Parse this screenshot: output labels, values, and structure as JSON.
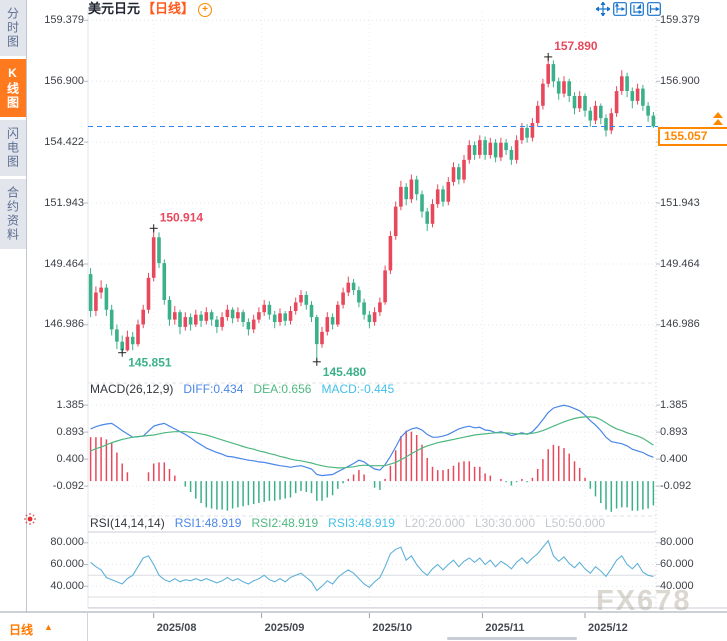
{
  "sidebar": {
    "items": [
      {
        "label": "分时图",
        "selected": false
      },
      {
        "label": "K线图",
        "selected": true
      },
      {
        "label": "闪电图",
        "selected": false
      },
      {
        "label": "合约资料",
        "selected": false
      }
    ]
  },
  "header": {
    "symbol": "美元日元",
    "period": "【日线】"
  },
  "toolbar": {
    "icons": [
      "move",
      "fit-left-axis",
      "fit-right-axis",
      "pan-right"
    ]
  },
  "price_badge": {
    "label": "155.057"
  },
  "bottom_axis": {
    "tab_label": "日线",
    "tab_arrow": "▲",
    "months": [
      {
        "label": "2025/08",
        "index": 12
      },
      {
        "label": "2025/09",
        "index": 32.5
      },
      {
        "label": "2025/10",
        "index": 53
      },
      {
        "label": "2025/11",
        "index": 74.5
      },
      {
        "label": "2025/12",
        "index": 94
      }
    ]
  },
  "watermark": "FX678",
  "colors": {
    "up": "#e8485c",
    "down": "#3bb18a",
    "diff_line": "#4a86e8",
    "dea_line": "#4db87e",
    "rsi_line": "#5fb1d8",
    "price_line": "#2e86ee",
    "accent": "#ff8800",
    "grid": "#e4e7ec"
  },
  "chart_data": [
    {
      "type": "candlestick",
      "title": "美元日元【日线】",
      "ylim": [
        144.7,
        159.8
      ],
      "yticks": [
        {
          "label": "159.379",
          "value": 159.379
        },
        {
          "label": "156.900",
          "value": 156.9
        },
        {
          "label": "154.422",
          "value": 154.422
        },
        {
          "label": "151.943",
          "value": 151.943
        },
        {
          "label": "149.464",
          "value": 149.464
        },
        {
          "label": "146.986",
          "value": 146.986
        }
      ],
      "current_price": {
        "value": 155.057,
        "label": "155.057"
      },
      "annotations": [
        {
          "label": "150.914",
          "value": 150.914,
          "index": 12,
          "color": "#e8485c",
          "placement": "above"
        },
        {
          "label": "145.851",
          "value": 145.851,
          "index": 6,
          "color": "#3bb18a",
          "placement": "below"
        },
        {
          "label": "145.480",
          "value": 145.48,
          "index": 43,
          "color": "#3bb18a",
          "placement": "below"
        },
        {
          "label": "157.890",
          "value": 157.89,
          "index": 87,
          "color": "#e8485c",
          "placement": "above"
        }
      ],
      "candles": [
        [
          149.05,
          149.3,
          147.3,
          147.55
        ],
        [
          147.55,
          148.55,
          147.35,
          148.3
        ],
        [
          148.3,
          148.8,
          148.05,
          148.5
        ],
        [
          148.5,
          148.65,
          147.35,
          147.6
        ],
        [
          147.6,
          147.8,
          146.55,
          146.8
        ],
        [
          146.8,
          147.0,
          146.0,
          146.3
        ],
        [
          146.3,
          146.55,
          145.851,
          145.95
        ],
        [
          145.95,
          146.75,
          145.9,
          146.5
        ],
        [
          146.5,
          146.7,
          145.95,
          146.2
        ],
        [
          146.2,
          147.2,
          146.1,
          147.0
        ],
        [
          147.0,
          147.8,
          146.85,
          147.6
        ],
        [
          147.6,
          149.1,
          147.45,
          148.9
        ],
        [
          148.9,
          150.914,
          148.75,
          150.55
        ],
        [
          150.55,
          150.75,
          149.3,
          149.5
        ],
        [
          149.5,
          149.65,
          147.8,
          148.0
        ],
        [
          148.0,
          148.15,
          146.95,
          147.2
        ],
        [
          147.2,
          147.75,
          147.0,
          147.5
        ],
        [
          147.5,
          147.6,
          146.6,
          146.9
        ],
        [
          146.9,
          147.5,
          146.75,
          147.3
        ],
        [
          147.3,
          147.45,
          146.75,
          147.0
        ],
        [
          147.0,
          147.6,
          146.9,
          147.4
        ],
        [
          147.4,
          147.55,
          146.9,
          147.15
        ],
        [
          147.15,
          147.7,
          147.0,
          147.5
        ],
        [
          147.5,
          147.6,
          146.95,
          147.2
        ],
        [
          147.2,
          147.35,
          146.65,
          146.9
        ],
        [
          146.9,
          147.5,
          146.75,
          147.3
        ],
        [
          147.3,
          147.8,
          147.15,
          147.6
        ],
        [
          147.6,
          147.7,
          147.05,
          147.25
        ],
        [
          147.25,
          147.7,
          147.1,
          147.5
        ],
        [
          147.5,
          147.6,
          146.9,
          147.1
        ],
        [
          147.1,
          147.25,
          146.55,
          146.8
        ],
        [
          146.8,
          147.4,
          146.65,
          147.2
        ],
        [
          147.2,
          147.7,
          147.05,
          147.5
        ],
        [
          147.5,
          148.0,
          147.35,
          147.8
        ],
        [
          147.8,
          147.95,
          147.2,
          147.4
        ],
        [
          147.4,
          147.55,
          146.85,
          147.1
        ],
        [
          147.1,
          147.65,
          146.95,
          147.45
        ],
        [
          147.45,
          147.55,
          146.95,
          147.15
        ],
        [
          147.15,
          147.75,
          147.0,
          147.55
        ],
        [
          147.55,
          148.1,
          147.4,
          147.9
        ],
        [
          147.9,
          148.4,
          147.75,
          148.2
        ],
        [
          148.2,
          148.35,
          147.6,
          147.8
        ],
        [
          147.8,
          147.95,
          147.1,
          147.3
        ],
        [
          147.3,
          147.4,
          145.48,
          146.2
        ],
        [
          146.2,
          146.9,
          146.05,
          146.7
        ],
        [
          146.7,
          147.5,
          146.55,
          147.3
        ],
        [
          147.3,
          147.45,
          146.8,
          147.0
        ],
        [
          147.0,
          147.95,
          146.9,
          147.8
        ],
        [
          147.8,
          148.5,
          147.65,
          148.3
        ],
        [
          148.3,
          148.95,
          148.15,
          148.7
        ],
        [
          148.7,
          148.85,
          148.2,
          148.4
        ],
        [
          148.4,
          148.55,
          147.7,
          147.9
        ],
        [
          147.9,
          148.05,
          147.2,
          147.4
        ],
        [
          147.4,
          147.55,
          146.85,
          147.1
        ],
        [
          147.1,
          147.7,
          146.95,
          147.5
        ],
        [
          147.5,
          148.1,
          147.35,
          147.9
        ],
        [
          147.9,
          149.4,
          147.8,
          149.2
        ],
        [
          149.2,
          150.8,
          149.05,
          150.6
        ],
        [
          150.6,
          152.0,
          150.45,
          151.8
        ],
        [
          151.8,
          152.85,
          151.65,
          152.6
        ],
        [
          152.6,
          152.75,
          151.85,
          152.1
        ],
        [
          152.1,
          153.1,
          151.95,
          152.9
        ],
        [
          152.9,
          153.05,
          152.05,
          152.3
        ],
        [
          152.3,
          152.45,
          151.35,
          151.6
        ],
        [
          151.6,
          151.75,
          150.8,
          151.1
        ],
        [
          151.1,
          152.1,
          150.95,
          151.9
        ],
        [
          151.9,
          152.7,
          151.75,
          152.5
        ],
        [
          152.5,
          152.65,
          151.8,
          152.0
        ],
        [
          152.0,
          153.0,
          151.85,
          152.8
        ],
        [
          152.8,
          153.6,
          152.65,
          153.4
        ],
        [
          153.4,
          153.55,
          152.7,
          152.9
        ],
        [
          152.9,
          153.9,
          152.75,
          153.7
        ],
        [
          153.7,
          154.5,
          153.55,
          154.3
        ],
        [
          154.3,
          154.45,
          153.7,
          153.9
        ],
        [
          153.9,
          154.7,
          153.75,
          154.5
        ],
        [
          154.5,
          154.65,
          153.7,
          153.9
        ],
        [
          153.9,
          154.6,
          153.75,
          154.4
        ],
        [
          154.4,
          154.55,
          153.6,
          153.8
        ],
        [
          153.8,
          154.6,
          153.65,
          154.4
        ],
        [
          154.4,
          154.55,
          153.9,
          154.1
        ],
        [
          154.1,
          154.25,
          153.5,
          153.7
        ],
        [
          153.7,
          154.7,
          153.55,
          154.5
        ],
        [
          154.5,
          155.2,
          154.35,
          155.0
        ],
        [
          155.0,
          155.15,
          154.4,
          154.6
        ],
        [
          154.6,
          155.4,
          154.45,
          155.2
        ],
        [
          155.2,
          156.1,
          155.05,
          155.9
        ],
        [
          155.9,
          157.0,
          155.75,
          156.8
        ],
        [
          156.8,
          157.89,
          156.65,
          157.6
        ],
        [
          157.6,
          157.75,
          156.65,
          156.9
        ],
        [
          156.9,
          157.05,
          156.15,
          156.4
        ],
        [
          156.4,
          157.1,
          156.25,
          156.9
        ],
        [
          156.9,
          157.0,
          156.05,
          156.3
        ],
        [
          156.3,
          156.45,
          155.55,
          155.8
        ],
        [
          155.8,
          156.5,
          155.65,
          156.3
        ],
        [
          156.3,
          156.4,
          155.45,
          155.7
        ],
        [
          155.7,
          155.85,
          155.05,
          155.3
        ],
        [
          155.3,
          156.1,
          155.15,
          155.9
        ],
        [
          155.9,
          156.0,
          155.15,
          155.4
        ],
        [
          155.4,
          155.55,
          154.65,
          154.9
        ],
        [
          154.9,
          155.8,
          154.75,
          155.6
        ],
        [
          155.6,
          156.7,
          155.45,
          156.5
        ],
        [
          156.5,
          157.35,
          156.35,
          157.1
        ],
        [
          157.1,
          157.25,
          156.25,
          156.5
        ],
        [
          156.5,
          156.65,
          155.8,
          156.1
        ],
        [
          156.1,
          156.8,
          155.95,
          156.6
        ],
        [
          156.6,
          156.75,
          155.7,
          155.9
        ],
        [
          155.9,
          156.05,
          155.25,
          155.5
        ],
        [
          155.5,
          155.65,
          155.0,
          155.057
        ]
      ]
    },
    {
      "type": "bar",
      "name": "MACD",
      "params_label": "MACD(26,12,9)",
      "diff_label": "DIFF:0.434",
      "dea_label": "DEA:0.656",
      "macd_label": "MACD:-0.445",
      "ylim": [
        -0.6,
        1.55
      ],
      "yticks": [
        {
          "label": "1.385",
          "value": 1.385
        },
        {
          "label": "0.893",
          "value": 0.893
        },
        {
          "label": "0.400",
          "value": 0.4
        },
        {
          "label": "-0.092",
          "value": -0.092
        }
      ],
      "series": [
        {
          "name": "DIFF",
          "values": [
            0.95,
            0.99,
            1.02,
            1.04,
            1.05,
            0.99,
            0.92,
            0.86,
            0.8,
            0.81,
            0.82,
            0.91,
            1.0,
            1.03,
            1.05,
            1.0,
            0.95,
            0.9,
            0.85,
            0.79,
            0.72,
            0.66,
            0.6,
            0.56,
            0.52,
            0.49,
            0.45,
            0.44,
            0.42,
            0.4,
            0.38,
            0.37,
            0.35,
            0.34,
            0.32,
            0.3,
            0.28,
            0.27,
            0.25,
            0.27,
            0.28,
            0.25,
            0.22,
            0.12,
            0.1,
            0.11,
            0.12,
            0.17,
            0.22,
            0.27,
            0.32,
            0.38,
            0.35,
            0.28,
            0.22,
            0.2,
            0.3,
            0.45,
            0.62,
            0.8,
            0.9,
            0.95,
            0.97,
            0.93,
            0.85,
            0.8,
            0.8,
            0.82,
            0.85,
            0.9,
            0.95,
            0.98,
            1.0,
            0.97,
            0.98,
            0.93,
            0.92,
            0.88,
            0.9,
            0.87,
            0.83,
            0.85,
            0.88,
            0.85,
            0.9,
            1.0,
            1.12,
            1.25,
            1.33,
            1.36,
            1.38,
            1.36,
            1.32,
            1.28,
            1.2,
            1.1,
            1.02,
            0.92,
            0.8,
            0.72,
            0.7,
            0.68,
            0.64,
            0.58,
            0.55,
            0.52,
            0.47,
            0.434
          ]
        },
        {
          "name": "DEA",
          "values": [
            0.55,
            0.59,
            0.62,
            0.66,
            0.7,
            0.73,
            0.76,
            0.78,
            0.8,
            0.81,
            0.82,
            0.83,
            0.84,
            0.86,
            0.88,
            0.89,
            0.9,
            0.9,
            0.9,
            0.89,
            0.88,
            0.86,
            0.84,
            0.81,
            0.78,
            0.75,
            0.72,
            0.69,
            0.66,
            0.63,
            0.6,
            0.58,
            0.55,
            0.53,
            0.5,
            0.48,
            0.45,
            0.43,
            0.4,
            0.38,
            0.37,
            0.35,
            0.33,
            0.3,
            0.28,
            0.26,
            0.25,
            0.24,
            0.24,
            0.25,
            0.26,
            0.28,
            0.29,
            0.28,
            0.28,
            0.28,
            0.28,
            0.31,
            0.34,
            0.39,
            0.44,
            0.5,
            0.55,
            0.6,
            0.64,
            0.67,
            0.7,
            0.72,
            0.74,
            0.76,
            0.78,
            0.8,
            0.82,
            0.84,
            0.85,
            0.86,
            0.87,
            0.88,
            0.88,
            0.88,
            0.87,
            0.86,
            0.86,
            0.86,
            0.87,
            0.89,
            0.92,
            0.96,
            1.0,
            1.04,
            1.08,
            1.11,
            1.14,
            1.16,
            1.17,
            1.17,
            1.16,
            1.12,
            1.06,
            1.0,
            0.95,
            0.92,
            0.88,
            0.85,
            0.82,
            0.78,
            0.72,
            0.656
          ]
        }
      ]
    },
    {
      "type": "line",
      "name": "RSI",
      "params_label": "RSI(14,14,14)",
      "rsi1_label": "RSI1:48.919",
      "rsi2_label": "RSI2:48.919",
      "rsi3_label": "RSI3:48.919",
      "l20_label": "L20:20.000",
      "l30_label": "L30:30.000",
      "l50_label": "L50:50.000",
      "ylim": [
        18,
        90
      ],
      "yticks": [
        {
          "label": "80.000",
          "value": 80
        },
        {
          "label": "60.000",
          "value": 60
        },
        {
          "label": "40.000",
          "value": 40
        }
      ],
      "levels": [
        50,
        30,
        20
      ],
      "series": [
        {
          "name": "RSI1",
          "values": [
            62,
            58,
            55,
            48,
            46,
            44,
            42,
            47,
            50,
            58,
            66,
            68,
            60,
            50,
            46,
            44,
            47,
            44,
            46,
            45,
            47,
            45,
            47,
            45,
            43,
            45,
            48,
            45,
            47,
            44,
            42,
            45,
            47,
            50,
            46,
            44,
            47,
            44,
            48,
            50,
            52,
            48,
            44,
            36,
            40,
            45,
            42,
            48,
            52,
            55,
            52,
            47,
            42,
            39,
            44,
            48,
            58,
            70,
            74,
            76,
            64,
            68,
            60,
            54,
            50,
            56,
            60,
            55,
            60,
            64,
            58,
            63,
            66,
            62,
            66,
            60,
            64,
            58,
            63,
            60,
            56,
            62,
            66,
            61,
            66,
            70,
            76,
            82,
            68,
            63,
            67,
            61,
            57,
            62,
            56,
            52,
            58,
            54,
            49,
            56,
            64,
            68,
            60,
            56,
            61,
            53,
            50,
            48.919
          ]
        }
      ]
    }
  ]
}
